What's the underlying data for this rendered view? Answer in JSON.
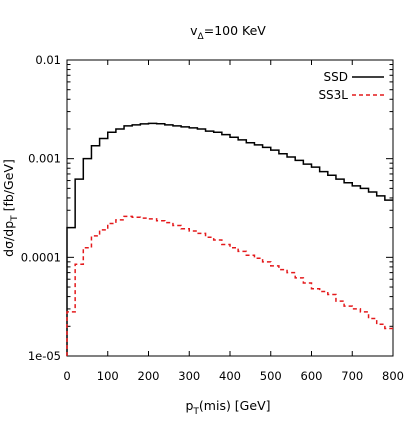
{
  "chart_data": {
    "type": "line",
    "title_main": "v",
    "title_sub": "Δ",
    "title_rest": "=100 KeV",
    "xlabel_main": "p",
    "xlabel_sub": "T",
    "xlabel_rest": "(mis) [GeV]",
    "ylabel_main": "dσ/dp",
    "ylabel_sub": "T",
    "ylabel_rest": " [fb/GeV]",
    "xlim": [
      0,
      800
    ],
    "ylim": [
      1e-05,
      0.01
    ],
    "y_scale": "log",
    "grid": false,
    "legend_position": "top-right",
    "x_ticks": [
      0,
      100,
      200,
      300,
      400,
      500,
      600,
      700,
      800
    ],
    "x_tick_labels": [
      "0",
      "100",
      "200",
      "300",
      "400",
      "500",
      "600",
      "700",
      "800"
    ],
    "y_ticks": [
      1e-05,
      0.0001,
      0.001,
      0.01
    ],
    "y_tick_labels": [
      "1e-05",
      "0.0001",
      "0.001",
      "0.01"
    ],
    "bin_edges": [
      0,
      20,
      40,
      60,
      80,
      100,
      120,
      140,
      160,
      180,
      200,
      220,
      240,
      260,
      280,
      300,
      320,
      340,
      360,
      380,
      400,
      420,
      440,
      460,
      480,
      500,
      520,
      540,
      560,
      580,
      600,
      620,
      640,
      660,
      680,
      700,
      720,
      740,
      760,
      780,
      800
    ],
    "series": [
      {
        "name": "SSD",
        "style": "solid",
        "color": "#000000",
        "values": [
          0.0002,
          0.00062,
          0.001,
          0.00135,
          0.0016,
          0.00185,
          0.002,
          0.00215,
          0.0022,
          0.00225,
          0.00228,
          0.00226,
          0.0022,
          0.00215,
          0.0021,
          0.00205,
          0.002,
          0.0019,
          0.00185,
          0.00175,
          0.00165,
          0.00155,
          0.00145,
          0.00138,
          0.0013,
          0.00122,
          0.00112,
          0.00104,
          0.00096,
          0.00088,
          0.00082,
          0.00074,
          0.00068,
          0.00062,
          0.00057,
          0.00053,
          0.0005,
          0.00046,
          0.00042,
          0.00038
        ]
      },
      {
        "name": "SS3L",
        "style": "dashed",
        "color": "#e41a1c",
        "values": [
          2.8e-05,
          8.5e-05,
          0.000125,
          0.000165,
          0.00019,
          0.00022,
          0.00024,
          0.00026,
          0.000255,
          0.00025,
          0.000245,
          0.000235,
          0.000225,
          0.00021,
          0.000195,
          0.000185,
          0.000175,
          0.00016,
          0.00015,
          0.000135,
          0.000125,
          0.000115,
          0.000105,
          9.8e-05,
          9e-05,
          8.2e-05,
          7.5e-05,
          7e-05,
          6.2e-05,
          5.5e-05,
          4.8e-05,
          4.5e-05,
          4.2e-05,
          3.6e-05,
          3.2e-05,
          3e-05,
          2.8e-05,
          2.4e-05,
          2.1e-05,
          1.9e-05
        ]
      }
    ]
  }
}
